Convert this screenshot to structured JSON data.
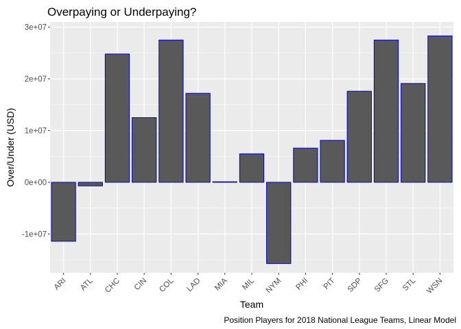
{
  "chart_data": {
    "type": "bar",
    "title": "Overpaying or Underpaying?",
    "caption": "Position Players for 2018 National League Teams, Linear Model",
    "xlabel": "Team",
    "ylabel": "Over/Under (USD)",
    "categories": [
      "ARI",
      "ATL",
      "CHC",
      "CIN",
      "COL",
      "LAD",
      "MIA",
      "MIL",
      "NYM",
      "PHI",
      "PIT",
      "SDP",
      "SFG",
      "STL",
      "WSN"
    ],
    "values": [
      -11400000,
      -700000,
      24800000,
      12500000,
      27500000,
      17200000,
      100000,
      5500000,
      -15700000,
      6600000,
      8100000,
      17600000,
      27500000,
      19100000,
      28300000
    ],
    "ylim": [
      -17500000,
      31000000
    ],
    "yticks": [
      -10000000,
      0,
      10000000,
      20000000,
      30000000
    ],
    "ytick_labels": [
      "-1e+07",
      "0e+00",
      "1e+07",
      "2e+07",
      "3e+07"
    ],
    "grid": true,
    "colors": {
      "panel_background": "#ebebeb",
      "grid_major": "#ffffff",
      "bar_fill": "#595959",
      "bar_outline": "#0000cc",
      "tick_text": "#4d4d4d",
      "tick_mark": "#333333"
    }
  }
}
